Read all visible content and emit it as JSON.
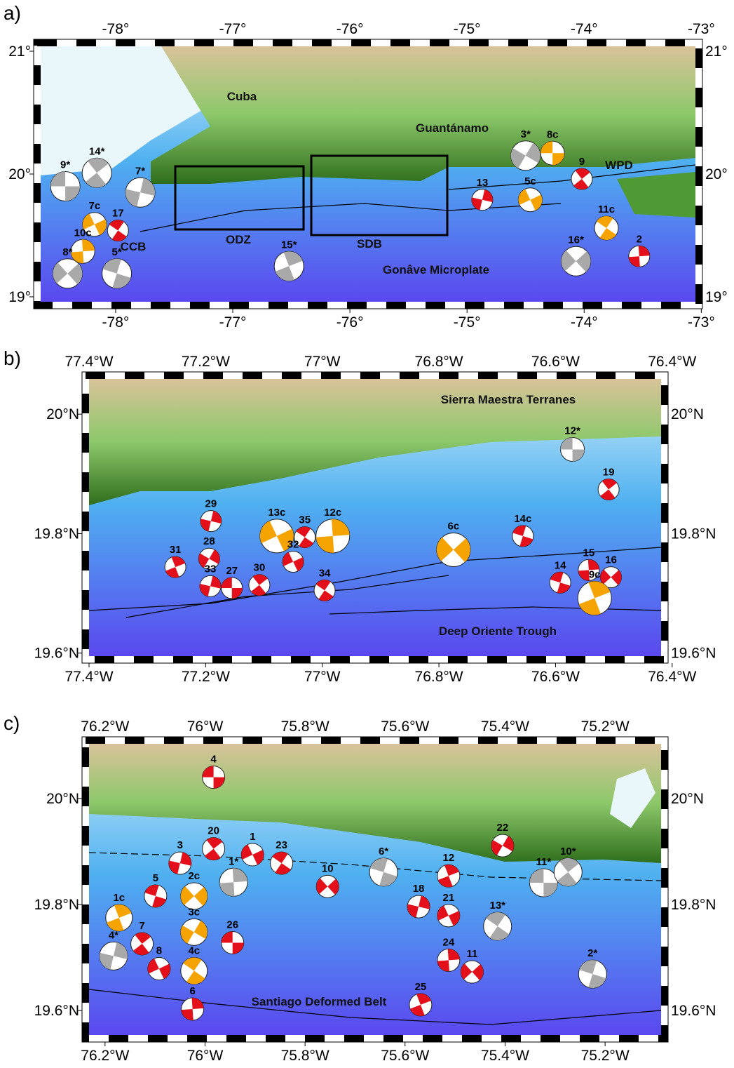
{
  "panels": [
    {
      "label": "a)",
      "xlim": [
        -78.64,
        -73.05
      ],
      "ylim": [
        18.96,
        21.04
      ],
      "xticks": [
        {
          "value": -78,
          "label": "-78°"
        },
        {
          "value": -77,
          "label": "-77°"
        },
        {
          "value": -76,
          "label": "-76°"
        },
        {
          "value": -75,
          "label": "-75°"
        },
        {
          "value": -74,
          "label": "-74°"
        },
        {
          "value": -73,
          "label": "-73°"
        }
      ],
      "yticks": [
        {
          "value": 19,
          "label": "19°"
        },
        {
          "value": 20,
          "label": "20°"
        },
        {
          "value": 21,
          "label": "21°"
        }
      ],
      "places": [
        "Cuba",
        "Guantánamo",
        "WPD",
        "CCB",
        "ODZ",
        "SDB",
        "Gonâve Microplate"
      ],
      "events": [
        {
          "label": "9*",
          "lon": -78.43,
          "lat": 19.9,
          "color": "#a9a9a9"
        },
        {
          "label": "14*",
          "lon": -78.16,
          "lat": 20.01,
          "color": "#a9a9a9"
        },
        {
          "label": "7*",
          "lon": -77.79,
          "lat": 19.85,
          "color": "#a9a9a9"
        },
        {
          "label": "7c",
          "lon": -78.18,
          "lat": 19.59,
          "color": "#f5a300"
        },
        {
          "label": "17",
          "lon": -77.98,
          "lat": 19.54,
          "color": "#e3101b"
        },
        {
          "label": "10c",
          "lon": -78.28,
          "lat": 19.37,
          "color": "#f5a300"
        },
        {
          "label": "8*",
          "lon": -78.41,
          "lat": 19.19,
          "color": "#a9a9a9"
        },
        {
          "label": "5*",
          "lon": -77.99,
          "lat": 19.19,
          "color": "#a9a9a9"
        },
        {
          "label": "15*",
          "lon": -76.52,
          "lat": 19.25,
          "color": "#a9a9a9"
        },
        {
          "label": "3*",
          "lon": -74.5,
          "lat": 20.15,
          "color": "#a9a9a9"
        },
        {
          "label": "8c",
          "lon": -74.27,
          "lat": 20.17,
          "color": "#f5a300"
        },
        {
          "label": "9",
          "lon": -74.02,
          "lat": 19.96,
          "color": "#e3101b"
        },
        {
          "label": "13",
          "lon": -74.87,
          "lat": 19.79,
          "color": "#e3101b"
        },
        {
          "label": "5c",
          "lon": -74.46,
          "lat": 19.79,
          "color": "#f5a300"
        },
        {
          "label": "11c",
          "lon": -73.81,
          "lat": 19.56,
          "color": "#f5a300"
        },
        {
          "label": "2",
          "lon": -73.53,
          "lat": 19.33,
          "color": "#e3101b"
        },
        {
          "label": "16*",
          "lon": -74.07,
          "lat": 19.29,
          "color": "#a9a9a9"
        }
      ]
    },
    {
      "label": "b)",
      "xlim": [
        -77.4,
        -76.419
      ],
      "ylim": [
        19.595,
        20.059
      ],
      "xticks": [
        {
          "value": -77.4,
          "label": "77.4°W"
        },
        {
          "value": -77.2,
          "label": "77.2°W"
        },
        {
          "value": -77,
          "label": "77°W"
        },
        {
          "value": -76.8,
          "label": "76.8°W"
        },
        {
          "value": -76.6,
          "label": "76.6°W"
        },
        {
          "value": -76.4,
          "label": "76.4°W"
        }
      ],
      "yticks": [
        {
          "value": 19.6,
          "label": "19.6°N"
        },
        {
          "value": 19.8,
          "label": "19.8°N"
        },
        {
          "value": 20,
          "label": "20°N"
        }
      ],
      "places": [
        "Sierra Maestra Terranes",
        "Deep Oriente Trough"
      ],
      "events": [
        {
          "label": "12*",
          "lon": -76.571,
          "lat": 19.941,
          "color": "#a9a9a9"
        },
        {
          "label": "19",
          "lon": -76.509,
          "lat": 19.874,
          "color": "#e3101b"
        },
        {
          "label": "29",
          "lon": -77.191,
          "lat": 19.821,
          "color": "#e3101b"
        },
        {
          "label": "13c",
          "lon": -77.078,
          "lat": 19.796,
          "color": "#f5a300"
        },
        {
          "label": "35",
          "lon": -77.03,
          "lat": 19.794,
          "color": "#e3101b"
        },
        {
          "label": "12c",
          "lon": -76.982,
          "lat": 19.796,
          "color": "#f5a300"
        },
        {
          "label": "6c",
          "lon": -76.775,
          "lat": 19.773,
          "color": "#f5a300"
        },
        {
          "label": "14c",
          "lon": -76.656,
          "lat": 19.796,
          "color": "#e3101b"
        },
        {
          "label": "31",
          "lon": -77.252,
          "lat": 19.744,
          "color": "#e3101b"
        },
        {
          "label": "28",
          "lon": -77.194,
          "lat": 19.758,
          "color": "#e3101b"
        },
        {
          "label": "27",
          "lon": -77.155,
          "lat": 19.709,
          "color": "#e3101b"
        },
        {
          "label": "30",
          "lon": -77.108,
          "lat": 19.714,
          "color": "#e3101b"
        },
        {
          "label": "33",
          "lon": -77.192,
          "lat": 19.712,
          "color": "#e3101b"
        },
        {
          "label": "32",
          "lon": -77.05,
          "lat": 19.753,
          "color": "#e3101b"
        },
        {
          "label": "34",
          "lon": -76.996,
          "lat": 19.705,
          "color": "#e3101b"
        },
        {
          "label": "15",
          "lon": -76.543,
          "lat": 19.739,
          "color": "#e3101b"
        },
        {
          "label": "16",
          "lon": -76.505,
          "lat": 19.727,
          "color": "#e3101b"
        },
        {
          "label": "14",
          "lon": -76.592,
          "lat": 19.718,
          "color": "#e3101b"
        },
        {
          "label": "9c",
          "lon": -76.533,
          "lat": 19.692,
          "color": "#f5a300"
        }
      ]
    },
    {
      "label": "c)",
      "xlim": [
        -76.232,
        -75.088
      ],
      "ylim": [
        19.554,
        20.103
      ],
      "xticks": [
        {
          "value": -76.2,
          "label": "76.2°W"
        },
        {
          "value": -76,
          "label": "76°W"
        },
        {
          "value": -75.8,
          "label": "75.8°W"
        },
        {
          "value": -75.6,
          "label": "75.6°W"
        },
        {
          "value": -75.4,
          "label": "75.4°W"
        },
        {
          "value": -75.2,
          "label": "75.2°W"
        }
      ],
      "yticks": [
        {
          "value": 19.6,
          "label": "19.6°N"
        },
        {
          "value": 19.8,
          "label": "19.8°N"
        },
        {
          "value": 20,
          "label": "20°N"
        }
      ],
      "places": [
        "Santiago Deformed Belt"
      ],
      "events": [
        {
          "label": "4",
          "lon": -75.983,
          "lat": 20.04,
          "color": "#e3101b"
        },
        {
          "label": "20",
          "lon": -75.983,
          "lat": 19.905,
          "color": "#e3101b"
        },
        {
          "label": "3",
          "lon": -76.05,
          "lat": 19.878,
          "color": "#e3101b"
        },
        {
          "label": "1",
          "lon": -75.905,
          "lat": 19.894,
          "color": "#e3101b"
        },
        {
          "label": "23",
          "lon": -75.847,
          "lat": 19.878,
          "color": "#e3101b"
        },
        {
          "label": "1*",
          "lon": -75.943,
          "lat": 19.842,
          "color": "#a9a9a9"
        },
        {
          "label": "2c",
          "lon": -76.022,
          "lat": 19.816,
          "color": "#f5a300"
        },
        {
          "label": "5",
          "lon": -76.099,
          "lat": 19.816,
          "color": "#e3101b"
        },
        {
          "label": "1c",
          "lon": -76.172,
          "lat": 19.775,
          "color": "#f5a300"
        },
        {
          "label": "3c",
          "lon": -76.022,
          "lat": 19.748,
          "color": "#f5a300"
        },
        {
          "label": "26",
          "lon": -75.945,
          "lat": 19.728,
          "color": "#e3101b"
        },
        {
          "label": "7",
          "lon": -76.126,
          "lat": 19.726,
          "color": "#e3101b"
        },
        {
          "label": "4*",
          "lon": -76.183,
          "lat": 19.703,
          "color": "#a9a9a9"
        },
        {
          "label": "8",
          "lon": -76.092,
          "lat": 19.679,
          "color": "#e3101b"
        },
        {
          "label": "4c",
          "lon": -76.022,
          "lat": 19.675,
          "color": "#f5a300"
        },
        {
          "label": "6",
          "lon": -76.025,
          "lat": 19.603,
          "color": "#e3101b"
        },
        {
          "label": "10",
          "lon": -75.755,
          "lat": 19.834,
          "color": "#e3101b"
        },
        {
          "label": "6*",
          "lon": -75.643,
          "lat": 19.861,
          "color": "#a9a9a9"
        },
        {
          "label": "12",
          "lon": -75.513,
          "lat": 19.854,
          "color": "#e3101b"
        },
        {
          "label": "22",
          "lon": -75.405,
          "lat": 19.911,
          "color": "#e3101b"
        },
        {
          "label": "11*",
          "lon": -75.323,
          "lat": 19.841,
          "color": "#a9a9a9"
        },
        {
          "label": "10*",
          "lon": -75.274,
          "lat": 19.861,
          "color": "#a9a9a9"
        },
        {
          "label": "18",
          "lon": -75.573,
          "lat": 19.796,
          "color": "#e3101b"
        },
        {
          "label": "21",
          "lon": -75.513,
          "lat": 19.779,
          "color": "#e3101b"
        },
        {
          "label": "13*",
          "lon": -75.415,
          "lat": 19.759,
          "color": "#a9a9a9"
        },
        {
          "label": "24",
          "lon": -75.513,
          "lat": 19.695,
          "color": "#e3101b"
        },
        {
          "label": "11",
          "lon": -75.466,
          "lat": 19.673,
          "color": "#e3101b"
        },
        {
          "label": "2*",
          "lon": -75.225,
          "lat": 19.669,
          "color": "#a9a9a9"
        },
        {
          "label": "25",
          "lon": -75.569,
          "lat": 19.611,
          "color": "#e3101b"
        }
      ]
    }
  ]
}
